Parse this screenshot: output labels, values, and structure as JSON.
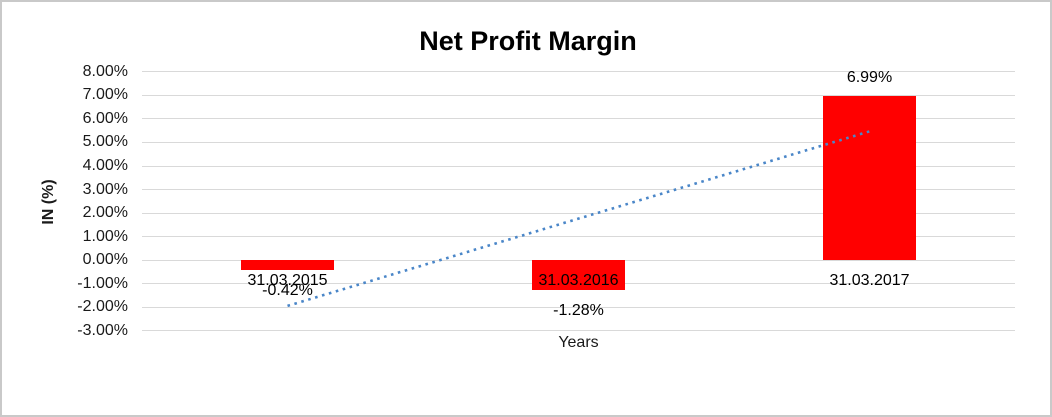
{
  "chart_data": {
    "type": "bar",
    "title": "Net Profit Margin",
    "xlabel": "Years",
    "ylabel": "IN (%)",
    "categories": [
      "31.03.2015",
      "31.03.2016",
      "31.03.2017"
    ],
    "values": [
      -0.42,
      -1.28,
      6.99
    ],
    "data_labels": [
      "-0.42%",
      "-1.28%",
      "6.99%"
    ],
    "ylim": [
      -3,
      8
    ],
    "ytick_values": [
      8,
      7,
      6,
      5,
      4,
      3,
      2,
      1,
      0,
      -1,
      -2,
      -3
    ],
    "ytick_labels": [
      "8.00%",
      "7.00%",
      "6.00%",
      "5.00%",
      "4.00%",
      "3.00%",
      "2.00%",
      "1.00%",
      "0.00%",
      "-1.00%",
      "-2.00%",
      "-3.00%"
    ],
    "grid": true,
    "legend": "none",
    "colors": {
      "bar": "#ff0000",
      "gridline": "#d9d9d9",
      "trendline": "#4a86c8",
      "text": "#1a1a1a"
    },
    "trendline": {
      "type": "linear",
      "style": "dotted",
      "color": "#4a86c8",
      "start_value": -1.94,
      "end_value": 5.47
    }
  }
}
